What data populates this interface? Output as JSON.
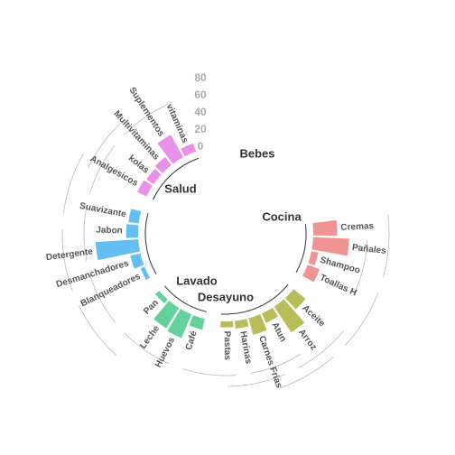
{
  "chart_data": {
    "type": "bar",
    "layout": "circular",
    "title": "",
    "xlabel": "",
    "ylabel": "",
    "ylim": [
      0,
      80
    ],
    "radial_ticks": [
      "80",
      "60",
      "40",
      "20",
      "0"
    ],
    "legend": "none",
    "groups": [
      {
        "name": "Bebes",
        "color": "#f08080",
        "categories": [
          "Cremas",
          "Pañales",
          "Shampoo",
          "Toallas H"
        ],
        "values": [
          28,
          42,
          8,
          15
        ]
      },
      {
        "name": "Cocina",
        "color": "#aab23b",
        "categories": [
          "Aceite",
          "Arroz",
          "Atun",
          "Carnes Frias",
          "Harinas",
          "Pastas"
        ],
        "values": [
          18,
          36,
          12,
          20,
          9,
          7
        ]
      },
      {
        "name": "Desayuno",
        "color": "#48c98a",
        "categories": [
          "Café",
          "Huevos",
          "Leche",
          "Pan"
        ],
        "values": [
          13,
          30,
          28,
          6
        ]
      },
      {
        "name": "Lavado",
        "color": "#4ab3ee",
        "categories": [
          "Blanqueadores",
          "Desmanchadores",
          "Detergente",
          "Jabon",
          "Suavizante"
        ],
        "values": [
          5,
          12,
          50,
          14,
          12
        ]
      },
      {
        "name": "Salud",
        "color": "#e57de5",
        "categories": [
          "Analgesicos",
          "kolas",
          "Multivitaminas",
          "Suplementos",
          "vitaminas"
        ],
        "values": [
          12,
          10,
          12,
          30,
          10
        ]
      }
    ]
  }
}
